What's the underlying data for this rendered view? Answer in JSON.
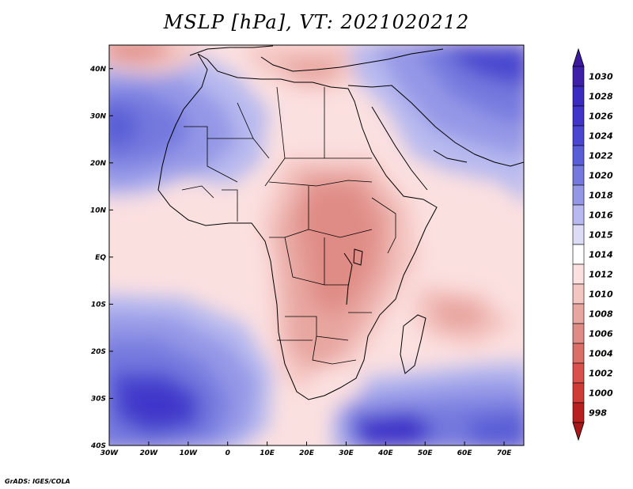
{
  "title": "MSLP [hPa], VT: 2021020212",
  "credit": "GrADS: IGES/COLA",
  "map": {
    "lon_range": [
      -30,
      75
    ],
    "lat_range": [
      -40,
      45
    ],
    "lon_ticks": [
      {
        "value": -30,
        "label": "30W"
      },
      {
        "value": -20,
        "label": "20W"
      },
      {
        "value": -10,
        "label": "10W"
      },
      {
        "value": 0,
        "label": "0"
      },
      {
        "value": 10,
        "label": "10E"
      },
      {
        "value": 20,
        "label": "20E"
      },
      {
        "value": 30,
        "label": "30E"
      },
      {
        "value": 40,
        "label": "40E"
      },
      {
        "value": 50,
        "label": "50E"
      },
      {
        "value": 60,
        "label": "60E"
      },
      {
        "value": 70,
        "label": "70E"
      }
    ],
    "lat_ticks": [
      {
        "value": 40,
        "label": "40N"
      },
      {
        "value": 30,
        "label": "30N"
      },
      {
        "value": 20,
        "label": "20N"
      },
      {
        "value": 10,
        "label": "10N"
      },
      {
        "value": 0,
        "label": "EQ"
      },
      {
        "value": -10,
        "label": "10S"
      },
      {
        "value": -20,
        "label": "20S"
      },
      {
        "value": -30,
        "label": "30S"
      },
      {
        "value": -40,
        "label": "40S"
      }
    ]
  },
  "colorbar": {
    "levels": [
      {
        "label": "1030",
        "color": "#3e1fa8"
      },
      {
        "label": "1028",
        "color": "#3b2cbf"
      },
      {
        "label": "1026",
        "color": "#4034c9"
      },
      {
        "label": "1024",
        "color": "#4a46cf"
      },
      {
        "label": "1022",
        "color": "#5a5ed6"
      },
      {
        "label": "1020",
        "color": "#7579de"
      },
      {
        "label": "1018",
        "color": "#9497e6"
      },
      {
        "label": "1016",
        "color": "#b7b9ef"
      },
      {
        "label": "1015",
        "color": "#dcdcf7"
      },
      {
        "label": "1014",
        "color": "#ffffff"
      },
      {
        "label": "1012",
        "color": "#fbe0e0"
      },
      {
        "label": "1010",
        "color": "#f4c6c2"
      },
      {
        "label": "1008",
        "color": "#e8a6a0"
      },
      {
        "label": "1006",
        "color": "#e08c86"
      },
      {
        "label": "1004",
        "color": "#dc6e68"
      },
      {
        "label": "1002",
        "color": "#d9514d"
      },
      {
        "label": "1000",
        "color": "#cf3b37"
      },
      {
        "label": "998",
        "color": "#b8201f"
      }
    ],
    "top_arrow_color": "#3a1a9e",
    "bottom_arrow_color": "#a8181a"
  }
}
